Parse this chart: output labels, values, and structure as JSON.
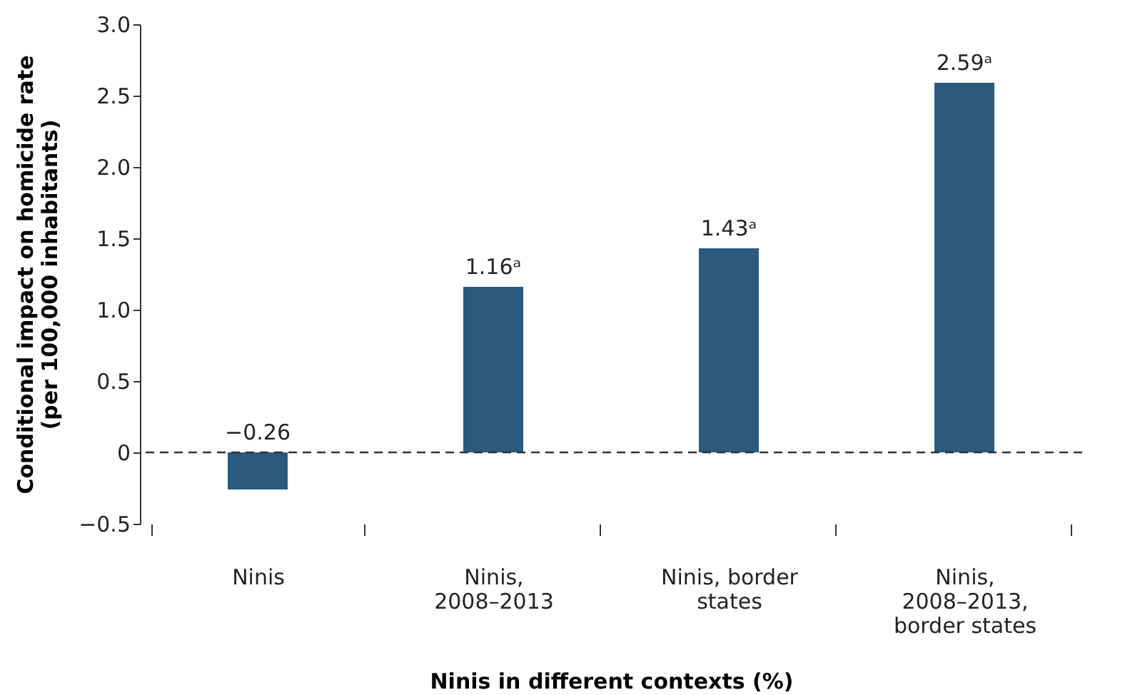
{
  "chart_data": {
    "type": "bar",
    "xlabel": "Ninis in different contexts (%)",
    "ylabel": "Conditional impact on homicide rate (per 100,000 inhabitants)",
    "categories": [
      "Ninis",
      "Ninis, 2008–2013",
      "Ninis, border states",
      "Ninis, 2008–2013, border states"
    ],
    "values": [
      -0.26,
      1.16,
      1.43,
      2.59
    ],
    "value_labels": [
      "−0.26",
      "1.16ᵃ",
      "1.43ᵃ",
      "2.59ᵃ"
    ],
    "color": "#2b5a7e",
    "ylim": [
      -0.5,
      3
    ],
    "yticks": [
      {
        "value": -0.5,
        "label": "−0.5"
      },
      0,
      0.5,
      {
        "value": 1,
        "label": "1.0"
      },
      1.5,
      {
        "value": 2,
        "label": "2.0"
      },
      2.5,
      {
        "value": 3,
        "label": "3.0"
      }
    ],
    "ref_lines": [
      {
        "axis": "y",
        "value": 0,
        "line_style": "dashed",
        "color": "#333333"
      }
    ],
    "grid": false
  }
}
